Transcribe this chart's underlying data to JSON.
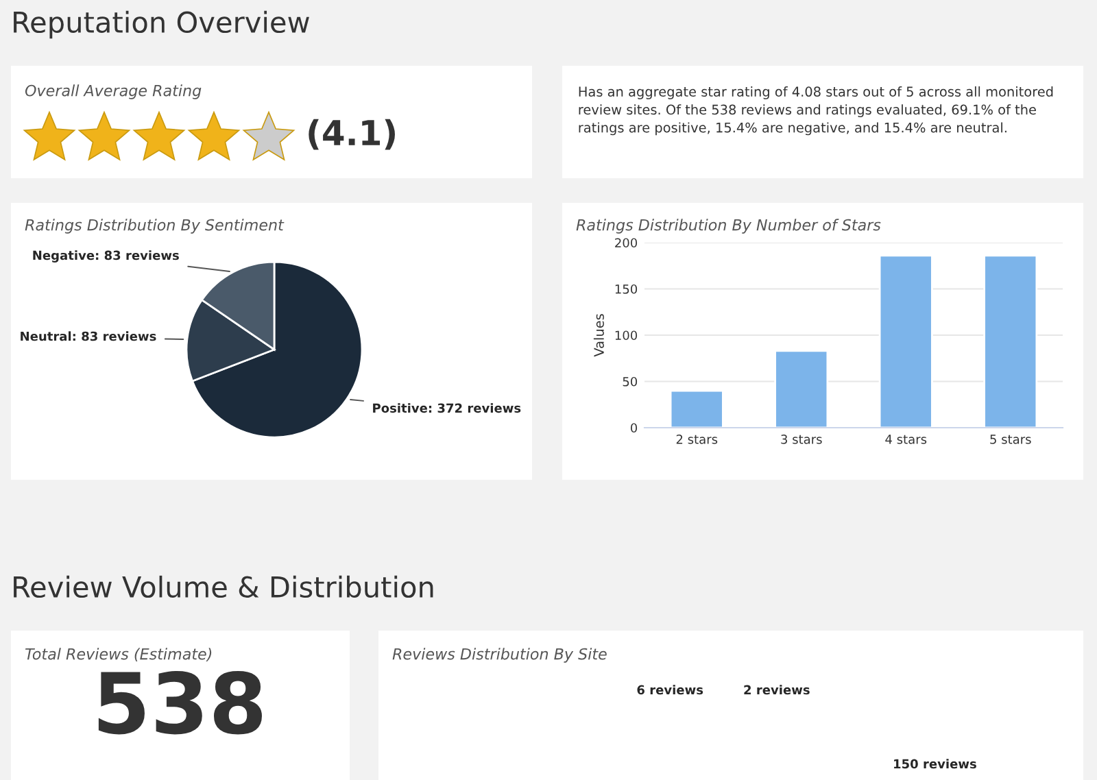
{
  "chart_data": [
    {
      "type": "other",
      "title": "Reputation Overview",
      "subtitle": "Overall Average Rating",
      "annotations": [
        "(4.1)"
      ]
    },
    {
      "type": "other",
      "annotations": [
        "Has an aggregate star rating of 4.08 stars out of 5 across all monitored review sites. Of the 538 reviews and ratings evaluated, 69.1% of the ratings are positive, 15.4% are negative, and 15.4% are neutral."
      ]
    },
    {
      "type": "pie",
      "title": "Ratings Distribution By Sentiment",
      "categories": [
        "Positive",
        "Neutral",
        "Negative"
      ],
      "values": [
        372,
        83,
        83
      ],
      "value_labels": [
        "372 reviews",
        "83 reviews",
        "83 reviews"
      ],
      "colors": [
        "#1b2a3a",
        "#2d3d4d",
        "#4a5a6a"
      ]
    },
    {
      "type": "bar",
      "title": "Ratings Distribution By Number of Stars",
      "ylabel": "Values",
      "categories": [
        "2 stars",
        "3 stars",
        "4 stars",
        "5 stars"
      ],
      "values": [
        40,
        83,
        186,
        186
      ],
      "color": "#7cb4ea",
      "ylim": [
        0,
        200
      ],
      "yticks": [
        0,
        50,
        100,
        150,
        200
      ],
      "grid": "y"
    },
    {
      "type": "other",
      "title": "Review Volume & Distribution",
      "subtitle": "Total Reviews (Estimate)",
      "annotations": [
        "538"
      ]
    },
    {
      "type": "other",
      "title": "Reviews Distribution By Site",
      "annotations": [
        "6 reviews",
        "2 reviews",
        "150 reviews"
      ]
    }
  ]
}
